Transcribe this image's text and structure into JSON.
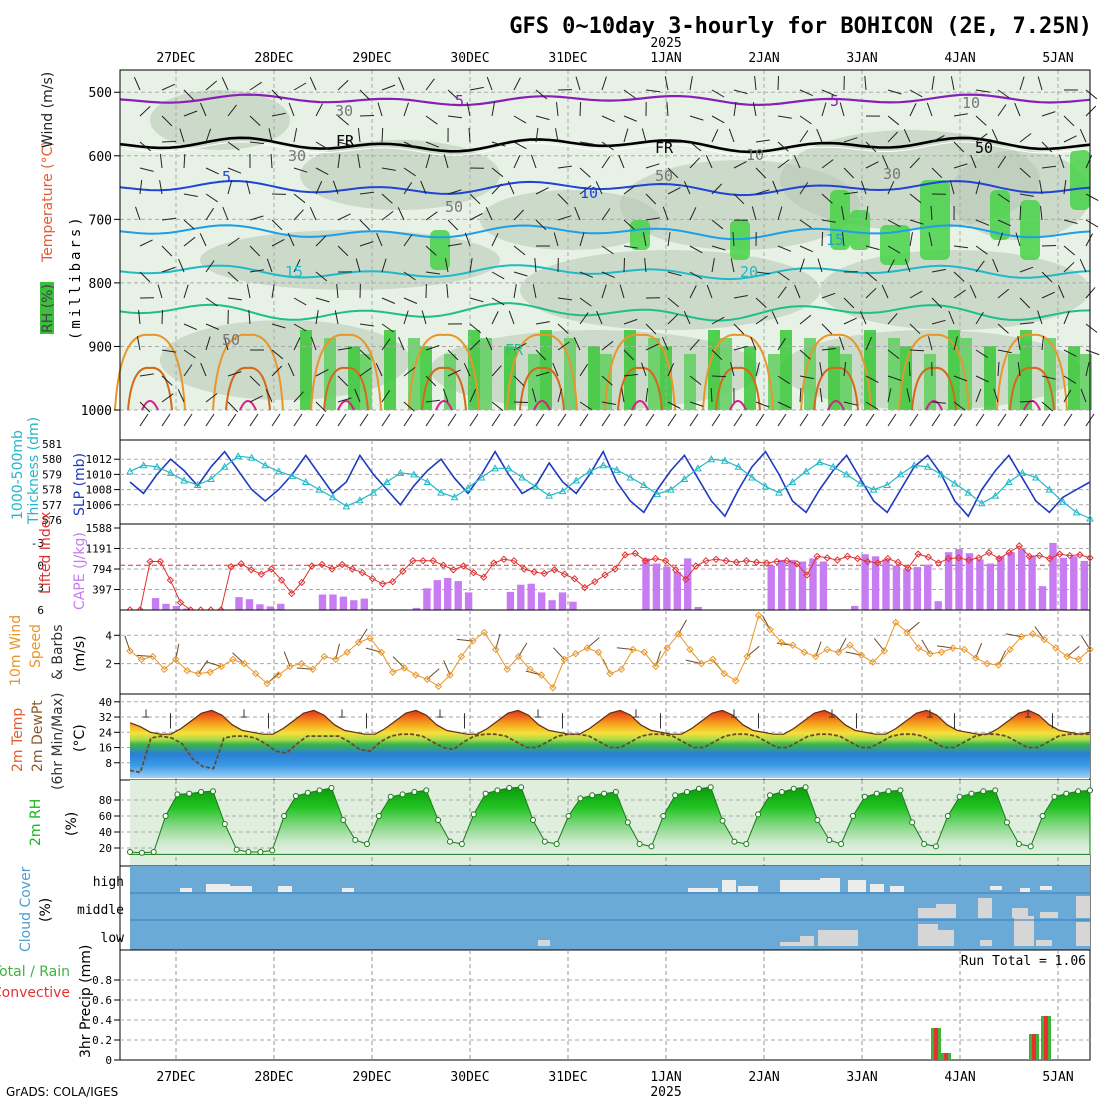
{
  "title": "GFS 0~10day 3-hourly for BOHICON (2E, 7.25N)",
  "year_label": "2025",
  "footer": "GrADS: COLA/IGES",
  "colors": {
    "panel_bg_green": "#dfeedd",
    "cloud_bg": "#6ba9d6",
    "lifted_index": "#e03030",
    "cape": "#c77cf2",
    "slp": "#1f3bc0",
    "thickness": "#22b8c8",
    "wind": "#e8962a",
    "rh_green": "#1cb51c",
    "precip_green": "#3cb43c",
    "precip_red": "#e83030"
  },
  "x_axis": {
    "date_labels": [
      "27DEC",
      "28DEC",
      "29DEC",
      "30DEC",
      "31DEC",
      "1JAN",
      "2JAN",
      "3JAN",
      "4JAN",
      "5JAN"
    ]
  },
  "panels": {
    "profile": {
      "left_label_rh": "RH (%)",
      "left_label_temp": "Temperature (°C)",
      "left_label_wind": "Wind (m/s)",
      "y_label": "(millibars)",
      "y_ticks": [
        "500",
        "600",
        "700",
        "800",
        "900",
        "1000"
      ],
      "contour_labels": [
        "5",
        "5",
        "5",
        "10",
        "15",
        "15",
        "20",
        "FR",
        "FR",
        "FR",
        "50",
        "30",
        "30",
        "50",
        "50",
        "30",
        "50",
        "10",
        "10"
      ]
    },
    "thickness_slp": {
      "left_label_a": "Thickness (dm)",
      "left_label_b": "1000-500mb",
      "right_label": "SLP (mb)",
      "thickness_ticks": [
        "581",
        "580",
        "579",
        "578",
        "577",
        "576"
      ],
      "slp_ticks": [
        "1012",
        "1010",
        "1008",
        "1006"
      ]
    },
    "cape_li": {
      "left_label": "Lifted Index",
      "right_label": "CAPE (J/kg)",
      "li_ticks": [
        "-3",
        "0",
        "3",
        "6"
      ],
      "cape_ticks": [
        "1588",
        "1191",
        "794",
        "397"
      ]
    },
    "wind10m": {
      "label_a": "10m Wind",
      "label_b": "Speed",
      "label_c": "& Barbs",
      "unit": "(m/s)",
      "ticks": [
        "2",
        "4"
      ]
    },
    "temp2m": {
      "label_a": "2m Temp",
      "label_b": "2m DewPt",
      "label_c": "(6hr Min/Max)",
      "unit": "(°C)",
      "ticks": [
        "40",
        "32",
        "24",
        "16",
        "8"
      ]
    },
    "rh2m": {
      "label": "2m RH",
      "unit": "(%)",
      "ticks": [
        "80",
        "60",
        "40",
        "20"
      ]
    },
    "cloud": {
      "label": "Cloud Cover",
      "unit": "(%)",
      "levels": [
        "high",
        "middle",
        "low"
      ]
    },
    "precip": {
      "label_a": "3hr Precip (mm)",
      "label_b": "Total / Rain",
      "label_c": "Convective",
      "run_total": "Run Total = 1.06",
      "ticks": [
        "0.8",
        "0.6",
        "0.4",
        "0.2",
        "0"
      ]
    }
  },
  "chart_data": [
    {
      "type": "line",
      "title": "1000-500mb Thickness (dm) and SLP (mb)",
      "series": [
        {
          "name": "SLP (mb)",
          "axis": "right",
          "values": [
            1009,
            1007.5,
            1010,
            1012,
            1010.5,
            1008.5,
            1011,
            1013,
            1010.5,
            1008,
            1006.5,
            1008,
            1010,
            1012.5,
            1010,
            1007.5,
            1009,
            1012.5,
            1010,
            1008,
            1006,
            1008.5,
            1010.5,
            1012,
            1009.5,
            1007.5,
            1010,
            1013,
            1010,
            1007.5,
            1008.5,
            1011.5,
            1009,
            1007.5,
            1010,
            1013,
            1009,
            1006.5,
            1005,
            1008,
            1010.5,
            1012.5,
            1009.5,
            1006.5,
            1004.5,
            1008,
            1011,
            1013,
            1010,
            1006.5,
            1005,
            1008,
            1010.5,
            1012.5,
            1009.5,
            1006.5,
            1005,
            1008,
            1011,
            1012.5,
            1010,
            1006.5,
            1004.5,
            1008,
            1010.5,
            1012.5,
            1009.5,
            1006.5,
            1005,
            1007,
            1008,
            1009
          ]
        },
        {
          "name": "Thickness (dm)",
          "axis": "left",
          "values": [
            579.2,
            579.6,
            579.5,
            579.1,
            578.6,
            578.3,
            578.7,
            579.5,
            580.2,
            580.1,
            579.6,
            579.2,
            578.9,
            578.5,
            578.0,
            577.5,
            576.9,
            577.3,
            577.8,
            578.5,
            579.1,
            579.0,
            578.5,
            577.8,
            577.5,
            578.1,
            578.8,
            579.4,
            579.4,
            578.8,
            578.2,
            577.6,
            577.9,
            578.6,
            579.2,
            579.6,
            579.3,
            578.8,
            578.3,
            577.7,
            578.0,
            578.7,
            579.4,
            580.0,
            579.9,
            579.5,
            578.8,
            578.2,
            577.8,
            578.5,
            579.2,
            579.8,
            579.5,
            579.0,
            578.4,
            578.0,
            578.3,
            579.0,
            579.6,
            579.5,
            579.0,
            578.4,
            577.8,
            577.1,
            577.6,
            578.5,
            579.1,
            578.8,
            578.0,
            577.2,
            576.5,
            576.1
          ]
        }
      ],
      "ylim_left": [
        576,
        581
      ],
      "ylim_right": [
        1004,
        1014
      ]
    },
    {
      "type": "bar",
      "title": "Lifted Index and CAPE (J/kg)",
      "series": [
        {
          "name": "CAPE (J/kg)",
          "values": [
            0,
            0,
            230,
            120,
            80,
            30,
            0,
            0,
            0,
            0,
            250,
            210,
            110,
            70,
            120,
            0,
            0,
            0,
            300,
            300,
            260,
            190,
            220,
            0,
            0,
            0,
            0,
            40,
            420,
            580,
            620,
            560,
            340,
            0,
            0,
            0,
            350,
            490,
            510,
            340,
            190,
            340,
            160,
            0,
            0,
            0,
            0,
            0,
            0,
            1000,
            900,
            840,
            740,
            1000,
            60,
            0,
            0,
            0,
            0,
            0,
            0,
            860,
            970,
            970,
            940,
            1000,
            940,
            0,
            0,
            80,
            1080,
            1040,
            980,
            860,
            800,
            830,
            880,
            170,
            1120,
            1180,
            1100,
            980,
            900,
            1040,
            1120,
            1180,
            1050,
            460,
            1300,
            1010,
            1040,
            950
          ]
        },
        {
          "name": "Lifted Index",
          "values": [
            6,
            6,
            -0.5,
            -0.5,
            2,
            5,
            6,
            6,
            6,
            6,
            0.2,
            -0.2,
            0.6,
            1.2,
            0.5,
            2,
            3.8,
            2.3,
            0.1,
            -0.1,
            0.5,
            -0.1,
            0.5,
            1,
            1.8,
            2.5,
            2.2,
            0.8,
            -0.6,
            -0.6,
            -0.6,
            0,
            0.6,
            0.1,
            1,
            1.6,
            -0.3,
            -0.8,
            -0.6,
            0.5,
            0.9,
            1.1,
            0.6,
            1.2,
            1.8,
            3,
            2.2,
            1.3,
            0.5,
            -1.4,
            -1.6,
            -0.6,
            -0.9,
            -0.6,
            0.6,
            1.9,
            0.1,
            -0.6,
            -0.8,
            -0.6,
            -0.4,
            -0.6,
            -0.4,
            -0.3,
            -0.5,
            -0.6,
            -0.2,
            1.3,
            -1.2,
            -1,
            -0.7,
            -1.2,
            -0.9,
            -0.5,
            -0.3,
            -0.9,
            -0.4,
            0.4,
            -1.5,
            -1.1,
            -0.3,
            -0.9,
            -1,
            -0.7,
            -1,
            -1.7,
            -0.9,
            -1.7,
            -2.6,
            -1.2,
            -1.3,
            -0.9,
            -1.5,
            -1.3,
            -1.4,
            -1
          ]
        }
      ],
      "ylim_left": [
        6,
        -5
      ],
      "ylim_right": [
        0,
        1588
      ]
    },
    {
      "type": "line",
      "title": "10m Wind Speed (m/s)",
      "series": [
        {
          "name": "Speed",
          "values": [
            2.9,
            2.3,
            2.5,
            1.6,
            2.3,
            1.5,
            1.3,
            1.4,
            1.8,
            2.3,
            2.0,
            1.3,
            0.6,
            1.2,
            1.8,
            2.0,
            1.6,
            2.5,
            2.3,
            2.8,
            3.5,
            3.8,
            2.8,
            1.4,
            1.7,
            1.2,
            0.9,
            0.4,
            1.2,
            2.5,
            3.6,
            4.2,
            3.0,
            1.6,
            2.5,
            1.6,
            1.2,
            0.3,
            2.3,
            2.7,
            3.1,
            2.8,
            1.3,
            1.6,
            3.0,
            2.8,
            1.8,
            3.1,
            4.1,
            3.0,
            2.0,
            2.3,
            1.3,
            0.8,
            2.5,
            5.4,
            4.4,
            3.5,
            3.3,
            2.8,
            2.5,
            3.0,
            2.8,
            3.3,
            2.6,
            2.1,
            2.9,
            4.9,
            4.2,
            3.1,
            2.7,
            2.8,
            3.1,
            3.0,
            2.4,
            2.0,
            1.9,
            3.0,
            3.9,
            4.1,
            3.7,
            3.1,
            2.5,
            2.3,
            3.0
          ]
        }
      ],
      "ylim": [
        0,
        5.5
      ]
    },
    {
      "type": "area",
      "title": "2m Temp / 2m DewPt (°C)",
      "series": [
        {
          "name": "2m Temp",
          "values": [
            29,
            27,
            24,
            23,
            23,
            26,
            30,
            34,
            35.5,
            33,
            28,
            25,
            24,
            23,
            23,
            26,
            30,
            34,
            35.5,
            33,
            28,
            25,
            24,
            23,
            23,
            26,
            30,
            34,
            35.5,
            33,
            28,
            25,
            24,
            23,
            23,
            26,
            30,
            34,
            35.5,
            33,
            28,
            25,
            24,
            23,
            23,
            26,
            30,
            34,
            35.5,
            33,
            28,
            25,
            24,
            23,
            23,
            26,
            30,
            34,
            35.5,
            33,
            28,
            25,
            24,
            23,
            23,
            26,
            30,
            34,
            35.5,
            33,
            28,
            25,
            24,
            23,
            23,
            26,
            30,
            34,
            35.5,
            33,
            28,
            25,
            24,
            23,
            23,
            26,
            30,
            34,
            35.5,
            33,
            28,
            25,
            24,
            23,
            24
          ]
        },
        {
          "name": "2m DewPt",
          "values": [
            4,
            3,
            21,
            22,
            21,
            18,
            10,
            6,
            5,
            21,
            22,
            22,
            21,
            18,
            14,
            13,
            18,
            22,
            22,
            22,
            22,
            19,
            15,
            14,
            19,
            22,
            23,
            23,
            22,
            19,
            16,
            15,
            19,
            22,
            23,
            23,
            22,
            19,
            16,
            16,
            19,
            22,
            23,
            23,
            22,
            19,
            16,
            16,
            19,
            22,
            23,
            23,
            22,
            19,
            16,
            16,
            19,
            22,
            23,
            23,
            22,
            19,
            16,
            16,
            19,
            22,
            23,
            23,
            22,
            19,
            16,
            16,
            19,
            22,
            23,
            23,
            22,
            19,
            16,
            16,
            19,
            22,
            23,
            23,
            22,
            19,
            16,
            16,
            19,
            22,
            23,
            23,
            23
          ]
        }
      ],
      "ylim": [
        0,
        42
      ]
    },
    {
      "type": "area",
      "title": "2m RH (%)",
      "series": [
        {
          "name": "2m RH",
          "values": [
            15,
            14,
            15,
            60,
            87,
            88,
            90,
            91,
            50,
            18,
            15,
            15,
            17,
            60,
            85,
            89,
            92,
            95,
            55,
            30,
            25,
            60,
            84,
            87,
            90,
            92,
            55,
            28,
            25,
            62,
            88,
            92,
            95,
            96,
            55,
            28,
            25,
            60,
            82,
            86,
            88,
            90,
            52,
            25,
            22,
            60,
            86,
            90,
            94,
            96,
            54,
            28,
            25,
            62,
            86,
            90,
            94,
            96,
            55,
            30,
            25,
            60,
            84,
            88,
            91,
            92,
            52,
            25,
            22,
            60,
            84,
            88,
            91,
            92,
            52,
            25,
            22,
            60,
            84,
            88,
            91,
            92
          ]
        }
      ],
      "ylim": [
        0,
        100
      ]
    },
    {
      "type": "bar",
      "title": "3hr Precip (mm)",
      "series": [
        {
          "name": "Total / Rain",
          "values": [
            0.32,
            0.07,
            0.26,
            0.44
          ]
        },
        {
          "name": "Convective",
          "values": [
            0.32,
            0.07,
            0.26,
            0.44
          ]
        }
      ],
      "ylim": [
        0,
        0.9
      ]
    }
  ]
}
